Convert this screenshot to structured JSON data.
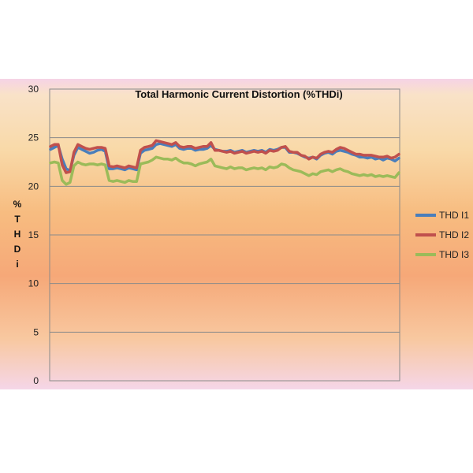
{
  "chart_data": {
    "type": "line",
    "title": "Total Harmonic Current Distortion (%THDi)",
    "ylabel": "% T H D i",
    "xlabel": "",
    "ylim": [
      0,
      30
    ],
    "yticks": [
      0,
      5,
      10,
      15,
      20,
      25,
      30
    ],
    "grid": true,
    "legend_position": "right",
    "series": [
      {
        "name": "THD I1",
        "color": "#4a7ebb",
        "values": [
          23.8,
          24.0,
          24.2,
          22.8,
          21.8,
          21.6,
          23.2,
          24.0,
          23.8,
          23.6,
          23.4,
          23.5,
          23.7,
          23.8,
          23.6,
          21.8,
          21.8,
          21.9,
          21.8,
          21.7,
          21.9,
          21.8,
          21.7,
          23.4,
          23.7,
          23.8,
          23.9,
          24.3,
          24.4,
          24.3,
          24.2,
          24.1,
          24.3,
          23.9,
          23.8,
          23.9,
          23.9,
          23.7,
          23.8,
          23.8,
          23.9,
          24.2,
          23.8,
          23.7,
          23.6,
          23.6,
          23.7,
          23.5,
          23.6,
          23.7,
          23.5,
          23.6,
          23.7,
          23.6,
          23.7,
          23.5,
          23.8,
          23.7,
          23.8,
          24.0,
          24.0,
          23.5,
          23.5,
          23.4,
          23.2,
          23.0,
          22.9,
          23.0,
          22.8,
          23.2,
          23.4,
          23.5,
          23.3,
          23.6,
          23.7,
          23.6,
          23.5,
          23.3,
          23.2,
          23.0,
          23.0,
          22.9,
          23.0,
          22.8,
          22.9,
          22.7,
          22.9,
          22.8,
          22.6,
          22.9
        ]
      },
      {
        "name": "THD I2",
        "color": "#c0504d",
        "values": [
          24.1,
          24.3,
          24.3,
          22.2,
          21.4,
          21.5,
          23.5,
          24.3,
          24.1,
          23.9,
          23.8,
          23.9,
          24.0,
          24.0,
          23.9,
          22.1,
          22.0,
          22.1,
          22.0,
          21.9,
          22.1,
          22.0,
          21.9,
          23.7,
          24.0,
          24.1,
          24.2,
          24.7,
          24.6,
          24.5,
          24.4,
          24.3,
          24.5,
          24.1,
          24.0,
          24.1,
          24.1,
          23.9,
          24.0,
          24.1,
          24.1,
          24.5,
          23.7,
          23.7,
          23.6,
          23.5,
          23.6,
          23.4,
          23.5,
          23.6,
          23.4,
          23.5,
          23.6,
          23.5,
          23.6,
          23.4,
          23.7,
          23.6,
          23.7,
          24.0,
          24.1,
          23.6,
          23.5,
          23.5,
          23.2,
          23.1,
          22.8,
          23.0,
          22.9,
          23.3,
          23.5,
          23.6,
          23.5,
          23.8,
          24.0,
          23.9,
          23.7,
          23.5,
          23.3,
          23.3,
          23.2,
          23.2,
          23.2,
          23.1,
          23.0,
          23.0,
          23.1,
          22.9,
          23.0,
          23.3
        ]
      },
      {
        "name": "THD I3",
        "color": "#9bbb59",
        "values": [
          22.4,
          22.5,
          22.4,
          20.6,
          20.2,
          20.4,
          22.1,
          22.5,
          22.3,
          22.2,
          22.3,
          22.3,
          22.2,
          22.3,
          22.2,
          20.6,
          20.5,
          20.6,
          20.5,
          20.4,
          20.6,
          20.5,
          20.5,
          22.3,
          22.4,
          22.5,
          22.7,
          23.0,
          22.9,
          22.8,
          22.8,
          22.7,
          22.9,
          22.6,
          22.4,
          22.4,
          22.3,
          22.1,
          22.3,
          22.4,
          22.5,
          22.8,
          22.1,
          22.0,
          21.9,
          21.8,
          22.0,
          21.8,
          21.9,
          21.9,
          21.7,
          21.8,
          21.9,
          21.8,
          21.9,
          21.7,
          22.0,
          21.9,
          22.0,
          22.3,
          22.2,
          21.9,
          21.7,
          21.6,
          21.5,
          21.3,
          21.1,
          21.3,
          21.2,
          21.5,
          21.6,
          21.7,
          21.5,
          21.7,
          21.8,
          21.6,
          21.5,
          21.3,
          21.2,
          21.1,
          21.2,
          21.1,
          21.2,
          21.0,
          21.1,
          21.0,
          21.1,
          21.0,
          20.9,
          21.4
        ]
      }
    ]
  }
}
